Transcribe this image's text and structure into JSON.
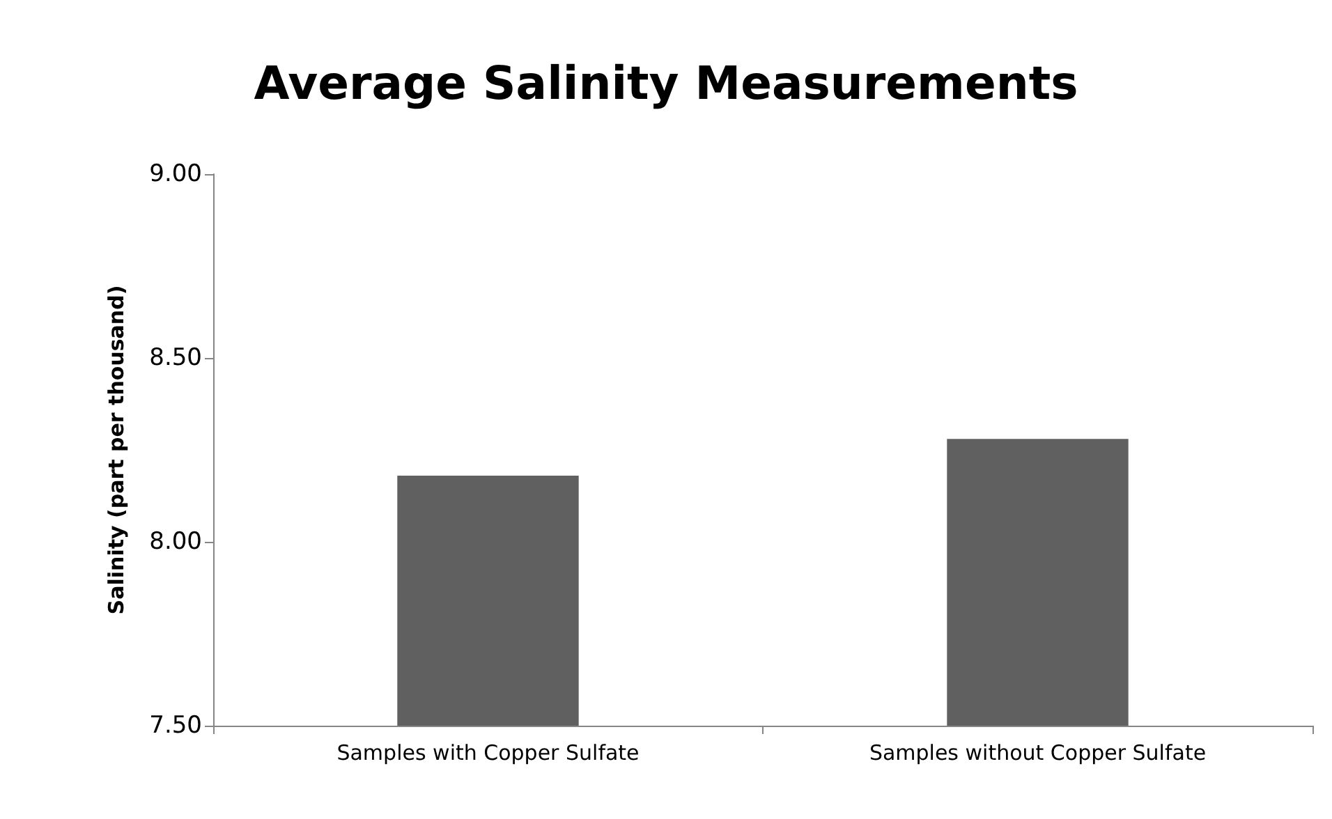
{
  "chart_data": {
    "type": "bar",
    "title": "Average Salinity Measurements",
    "ylabel": "Salinity (part per thousand)",
    "categories": [
      "Samples with Copper Sulfate",
      "Samples without Copper Sulfate"
    ],
    "values": [
      8.18,
      8.28
    ],
    "color": "#606060",
    "ylim": [
      7.5,
      9
    ],
    "yticks": [
      {
        "value": 7.5,
        "label": "7.50"
      },
      {
        "value": 8,
        "label": "8.00"
      },
      {
        "value": 8.5,
        "label": "8.50"
      },
      {
        "value": 9,
        "label": "9.00"
      }
    ],
    "grid": false
  }
}
